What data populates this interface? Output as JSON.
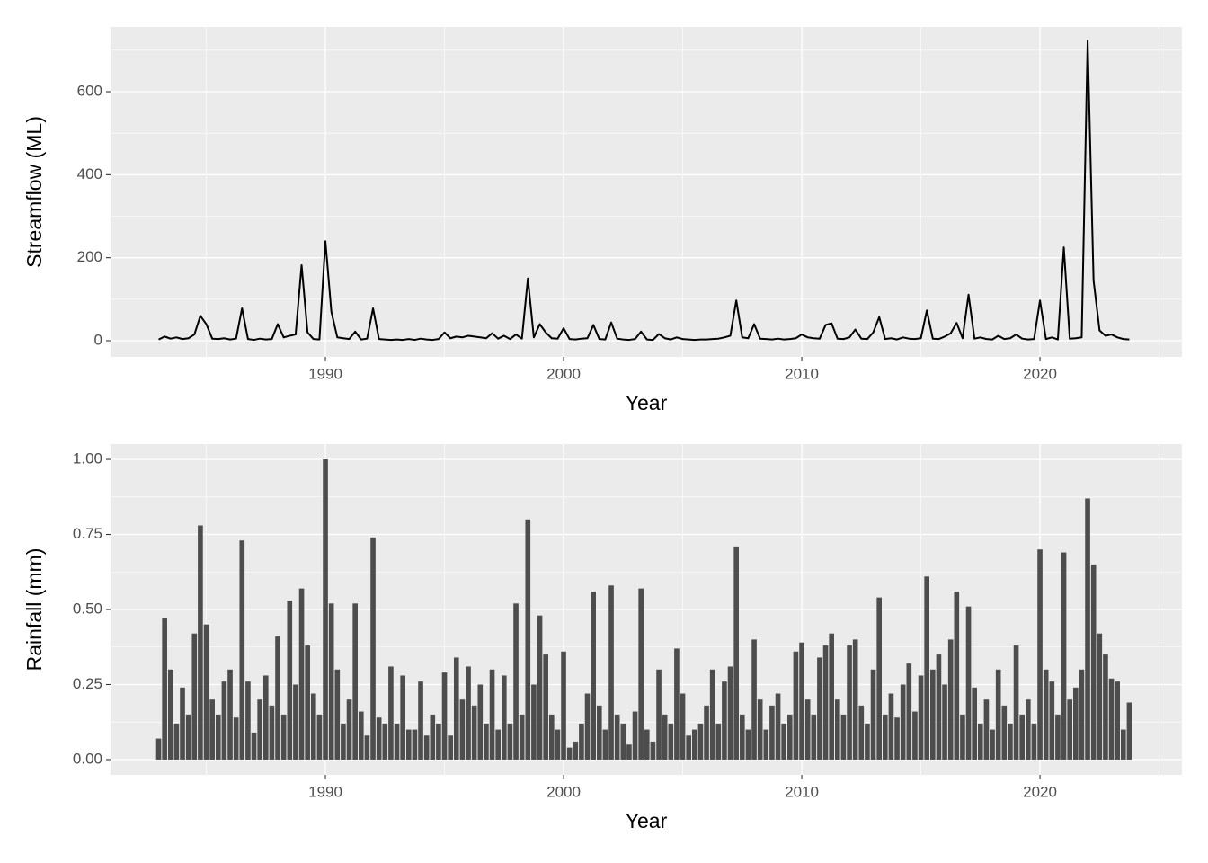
{
  "chart_data": [
    {
      "type": "line",
      "xlabel": "Year",
      "ylabel": "Streamflow (ML)",
      "color": "#000000",
      "xlim": [
        1980.98,
        2025.96
      ],
      "xticks": [
        1990,
        2000,
        2010,
        2020
      ],
      "ylim": [
        -39,
        756
      ],
      "yticks": [
        0,
        200,
        400,
        600
      ],
      "grid": true,
      "x": [
        1983,
        1983.25,
        1983.5,
        1983.75,
        1984,
        1984.25,
        1984.5,
        1984.75,
        1985,
        1985.25,
        1985.5,
        1985.75,
        1986,
        1986.25,
        1986.5,
        1986.75,
        1987,
        1987.25,
        1987.5,
        1987.75,
        1988,
        1988.25,
        1988.5,
        1988.75,
        1989,
        1989.25,
        1989.5,
        1989.75,
        1990,
        1990.25,
        1990.5,
        1990.75,
        1991,
        1991.25,
        1991.5,
        1991.75,
        1992,
        1992.25,
        1992.5,
        1992.75,
        1993,
        1993.25,
        1993.5,
        1993.75,
        1994,
        1994.25,
        1994.5,
        1994.75,
        1995,
        1995.25,
        1995.5,
        1995.75,
        1996,
        1996.25,
        1996.5,
        1996.75,
        1997,
        1997.25,
        1997.5,
        1997.75,
        1998,
        1998.25,
        1998.5,
        1998.75,
        1999,
        1999.25,
        1999.5,
        1999.75,
        2000,
        2000.25,
        2000.5,
        2000.75,
        2001,
        2001.25,
        2001.5,
        2001.75,
        2002,
        2002.25,
        2002.5,
        2002.75,
        2003,
        2003.25,
        2003.5,
        2003.75,
        2004,
        2004.25,
        2004.5,
        2004.75,
        2005,
        2005.25,
        2005.5,
        2005.75,
        2006,
        2006.25,
        2006.5,
        2006.75,
        2007,
        2007.25,
        2007.5,
        2007.75,
        2008,
        2008.25,
        2008.5,
        2008.75,
        2009,
        2009.25,
        2009.5,
        2009.75,
        2010,
        2010.25,
        2010.5,
        2010.75,
        2011,
        2011.25,
        2011.5,
        2011.75,
        2012,
        2012.25,
        2012.5,
        2012.75,
        2013,
        2013.25,
        2013.5,
        2013.75,
        2014,
        2014.25,
        2014.5,
        2014.75,
        2015,
        2015.25,
        2015.5,
        2015.75,
        2016,
        2016.25,
        2016.5,
        2016.75,
        2017,
        2017.25,
        2017.5,
        2017.75,
        2018,
        2018.25,
        2018.5,
        2018.75,
        2019,
        2019.25,
        2019.5,
        2019.75,
        2020,
        2020.25,
        2020.5,
        2020.75,
        2021,
        2021.25,
        2021.5,
        2021.75,
        2022,
        2022.25,
        2022.5,
        2022.75,
        2023,
        2023.25,
        2023.5,
        2023.75
      ],
      "values": [
        3,
        10,
        5,
        8,
        4,
        6,
        15,
        60,
        40,
        5,
        4,
        6,
        3,
        5,
        78,
        4,
        2,
        5,
        3,
        4,
        40,
        8,
        12,
        15,
        182,
        20,
        4,
        3,
        240,
        70,
        8,
        6,
        4,
        22,
        3,
        5,
        78,
        4,
        3,
        2,
        3,
        2,
        4,
        2,
        5,
        3,
        2,
        4,
        20,
        6,
        10,
        8,
        12,
        10,
        8,
        6,
        18,
        5,
        12,
        4,
        15,
        5,
        150,
        8,
        40,
        20,
        6,
        5,
        30,
        4,
        3,
        5,
        6,
        38,
        4,
        3,
        44,
        5,
        3,
        2,
        4,
        22,
        3,
        2,
        16,
        6,
        3,
        8,
        4,
        3,
        2,
        3,
        3,
        4,
        5,
        8,
        12,
        97,
        8,
        6,
        40,
        5,
        4,
        3,
        5,
        3,
        4,
        6,
        15,
        8,
        6,
        5,
        38,
        42,
        5,
        4,
        8,
        27,
        5,
        4,
        20,
        57,
        4,
        6,
        3,
        8,
        5,
        4,
        6,
        73,
        5,
        4,
        10,
        18,
        43,
        6,
        111,
        5,
        8,
        4,
        3,
        12,
        4,
        6,
        15,
        5,
        3,
        4,
        97,
        4,
        8,
        3,
        225,
        5,
        6,
        8,
        723,
        145,
        25,
        12,
        15,
        8,
        4,
        3
      ]
    },
    {
      "type": "bar",
      "xlabel": "Year",
      "ylabel": "Rainfall (mm)",
      "color": "#4d4d4d",
      "xlim": [
        1980.98,
        2025.96
      ],
      "xticks": [
        1990,
        2000,
        2010,
        2020
      ],
      "ylim": [
        -0.051,
        1.051
      ],
      "yticks": [
        {
          "value": 0,
          "label": "0.00"
        },
        {
          "value": 0.25,
          "label": "0.25"
        },
        {
          "value": 0.5,
          "label": "0.50"
        },
        {
          "value": 0.75,
          "label": "0.75"
        },
        {
          "value": 1,
          "label": "1.00"
        }
      ],
      "grid": true,
      "x": [
        1983,
        1983.25,
        1983.5,
        1983.75,
        1984,
        1984.25,
        1984.5,
        1984.75,
        1985,
        1985.25,
        1985.5,
        1985.75,
        1986,
        1986.25,
        1986.5,
        1986.75,
        1987,
        1987.25,
        1987.5,
        1987.75,
        1988,
        1988.25,
        1988.5,
        1988.75,
        1989,
        1989.25,
        1989.5,
        1989.75,
        1990,
        1990.25,
        1990.5,
        1990.75,
        1991,
        1991.25,
        1991.5,
        1991.75,
        1992,
        1992.25,
        1992.5,
        1992.75,
        1993,
        1993.25,
        1993.5,
        1993.75,
        1994,
        1994.25,
        1994.5,
        1994.75,
        1995,
        1995.25,
        1995.5,
        1995.75,
        1996,
        1996.25,
        1996.5,
        1996.75,
        1997,
        1997.25,
        1997.5,
        1997.75,
        1998,
        1998.25,
        1998.5,
        1998.75,
        1999,
        1999.25,
        1999.5,
        1999.75,
        2000,
        2000.25,
        2000.5,
        2000.75,
        2001,
        2001.25,
        2001.5,
        2001.75,
        2002,
        2002.25,
        2002.5,
        2002.75,
        2003,
        2003.25,
        2003.5,
        2003.75,
        2004,
        2004.25,
        2004.5,
        2004.75,
        2005,
        2005.25,
        2005.5,
        2005.75,
        2006,
        2006.25,
        2006.5,
        2006.75,
        2007,
        2007.25,
        2007.5,
        2007.75,
        2008,
        2008.25,
        2008.5,
        2008.75,
        2009,
        2009.25,
        2009.5,
        2009.75,
        2010,
        2010.25,
        2010.5,
        2010.75,
        2011,
        2011.25,
        2011.5,
        2011.75,
        2012,
        2012.25,
        2012.5,
        2012.75,
        2013,
        2013.25,
        2013.5,
        2013.75,
        2014,
        2014.25,
        2014.5,
        2014.75,
        2015,
        2015.25,
        2015.5,
        2015.75,
        2016,
        2016.25,
        2016.5,
        2016.75,
        2017,
        2017.25,
        2017.5,
        2017.75,
        2018,
        2018.25,
        2018.5,
        2018.75,
        2019,
        2019.25,
        2019.5,
        2019.75,
        2020,
        2020.25,
        2020.5,
        2020.75,
        2021,
        2021.25,
        2021.5,
        2021.75,
        2022,
        2022.25,
        2022.5,
        2022.75,
        2023,
        2023.25,
        2023.5,
        2023.75
      ],
      "values": [
        0.07,
        0.47,
        0.3,
        0.12,
        0.24,
        0.15,
        0.42,
        0.78,
        0.45,
        0.2,
        0.15,
        0.26,
        0.3,
        0.14,
        0.73,
        0.26,
        0.09,
        0.2,
        0.28,
        0.18,
        0.41,
        0.15,
        0.53,
        0.25,
        0.57,
        0.38,
        0.22,
        0.15,
        1.0,
        0.52,
        0.3,
        0.12,
        0.2,
        0.52,
        0.16,
        0.08,
        0.74,
        0.14,
        0.12,
        0.31,
        0.12,
        0.28,
        0.1,
        0.1,
        0.26,
        0.08,
        0.15,
        0.12,
        0.29,
        0.08,
        0.34,
        0.2,
        0.31,
        0.18,
        0.25,
        0.12,
        0.3,
        0.1,
        0.28,
        0.12,
        0.52,
        0.15,
        0.8,
        0.25,
        0.48,
        0.35,
        0.15,
        0.1,
        0.36,
        0.04,
        0.06,
        0.12,
        0.22,
        0.56,
        0.18,
        0.1,
        0.58,
        0.15,
        0.12,
        0.05,
        0.16,
        0.57,
        0.1,
        0.06,
        0.3,
        0.15,
        0.12,
        0.37,
        0.22,
        0.08,
        0.1,
        0.12,
        0.18,
        0.3,
        0.12,
        0.26,
        0.31,
        0.71,
        0.15,
        0.1,
        0.4,
        0.2,
        0.1,
        0.18,
        0.22,
        0.12,
        0.15,
        0.36,
        0.39,
        0.2,
        0.15,
        0.34,
        0.38,
        0.42,
        0.2,
        0.15,
        0.38,
        0.4,
        0.18,
        0.12,
        0.3,
        0.54,
        0.15,
        0.22,
        0.14,
        0.25,
        0.32,
        0.16,
        0.28,
        0.61,
        0.3,
        0.35,
        0.25,
        0.4,
        0.56,
        0.15,
        0.51,
        0.24,
        0.12,
        0.2,
        0.1,
        0.3,
        0.18,
        0.12,
        0.38,
        0.15,
        0.2,
        0.12,
        0.7,
        0.3,
        0.26,
        0.15,
        0.69,
        0.2,
        0.24,
        0.3,
        0.87,
        0.65,
        0.42,
        0.35,
        0.27,
        0.26,
        0.1,
        0.19
      ]
    }
  ]
}
